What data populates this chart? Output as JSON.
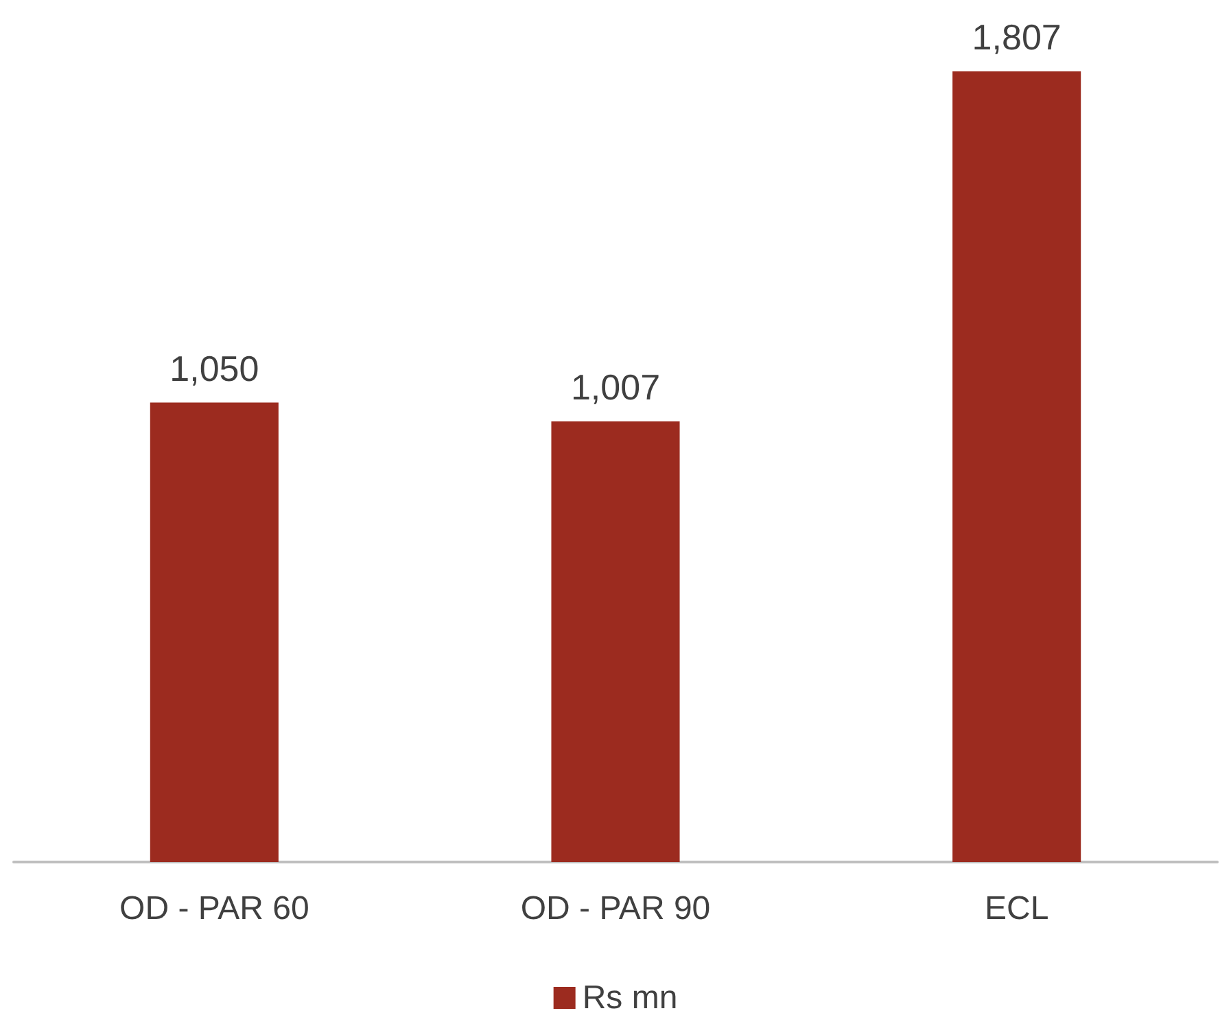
{
  "chart_data": {
    "type": "bar",
    "categories": [
      "OD - PAR 60",
      "OD - PAR 90",
      "ECL"
    ],
    "series": [
      {
        "name": "Rs mn",
        "color": "#9c2b1f",
        "values": [
          1050,
          1007,
          1807
        ],
        "value_labels": [
          "1,050",
          "1,007",
          "1,807"
        ]
      }
    ],
    "legend": "bottom",
    "grid": false
  }
}
